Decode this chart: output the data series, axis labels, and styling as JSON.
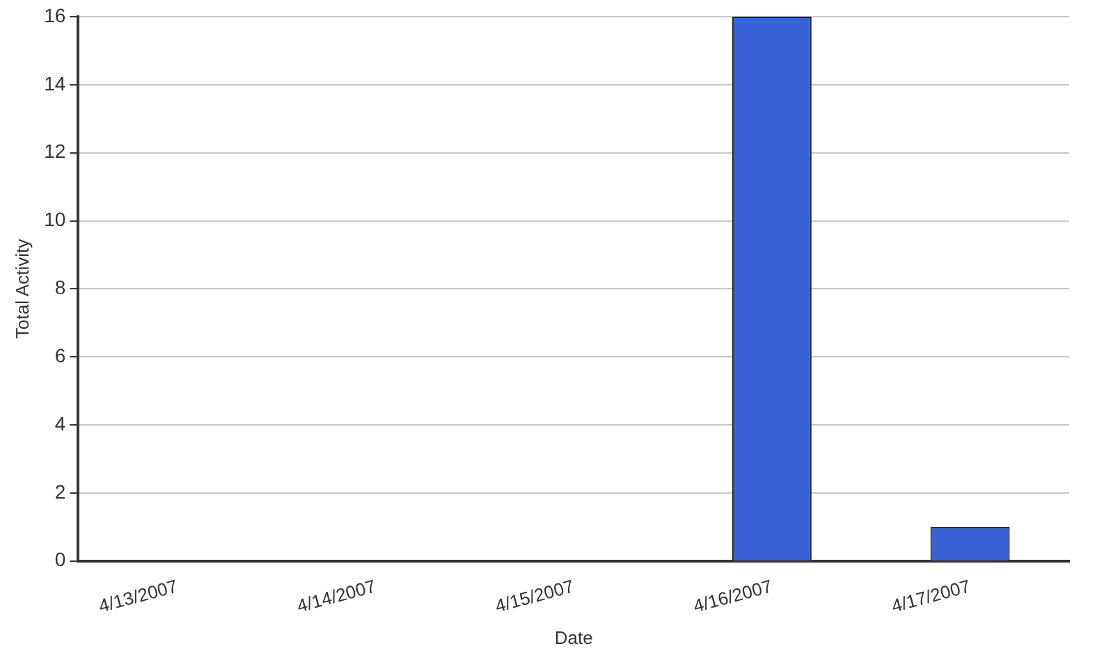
{
  "chart_data": {
    "type": "bar",
    "xlabel": "Date",
    "ylabel": "Total Activity",
    "categories": [
      "4/13/2007",
      "4/14/2007",
      "4/15/2007",
      "4/16/2007",
      "4/17/2007"
    ],
    "values": [
      0,
      0,
      0,
      16,
      1
    ],
    "color": "#3a62d8",
    "ylim": [
      0,
      16
    ],
    "yticks": [
      0,
      2,
      4,
      6,
      8,
      10,
      12,
      14,
      16
    ],
    "grid": "y",
    "legend": false
  }
}
